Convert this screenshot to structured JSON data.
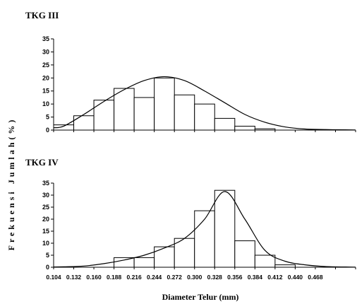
{
  "chart_data": [
    {
      "type": "bar",
      "title": "TKG III",
      "ylim": [
        0,
        35
      ],
      "yticks": [
        0,
        5,
        10,
        15,
        20,
        25,
        30,
        35
      ],
      "bins": 15,
      "values": [
        2,
        5.5,
        11.5,
        16,
        12.5,
        20,
        13.5,
        10,
        4.5,
        1.5,
        0.5,
        0,
        0,
        0,
        0
      ],
      "curve": [
        1.5,
        6,
        11,
        15.5,
        19,
        20.5,
        19,
        15,
        10.5,
        6,
        3,
        1.2,
        0.4,
        0.2,
        0.1
      ]
    },
    {
      "type": "bar",
      "title": "TKG IV",
      "ylim": [
        0,
        35
      ],
      "yticks": [
        0,
        5,
        10,
        15,
        20,
        25,
        30,
        35
      ],
      "bins": 15,
      "values": [
        0,
        0,
        0,
        4,
        4,
        8.5,
        12,
        23.5,
        32,
        11,
        5,
        1,
        0,
        0,
        0
      ],
      "curve": [
        0.2,
        0.5,
        1.5,
        3,
        5,
        8,
        12,
        20,
        31.5,
        20,
        7,
        2.5,
        1,
        0.3,
        0.1
      ]
    }
  ],
  "x_tick_labels": [
    "0.104",
    "0.132",
    "0.160",
    "0.188",
    "0.216",
    "0.244",
    "0.272",
    "0.300",
    "0.328",
    "0.356",
    "0.384",
    "0.412",
    "0.440",
    "0.468"
  ],
  "xlabel": "Diameter Telur (mm)",
  "ylabel": "Frekuensi Jumlah(%)"
}
